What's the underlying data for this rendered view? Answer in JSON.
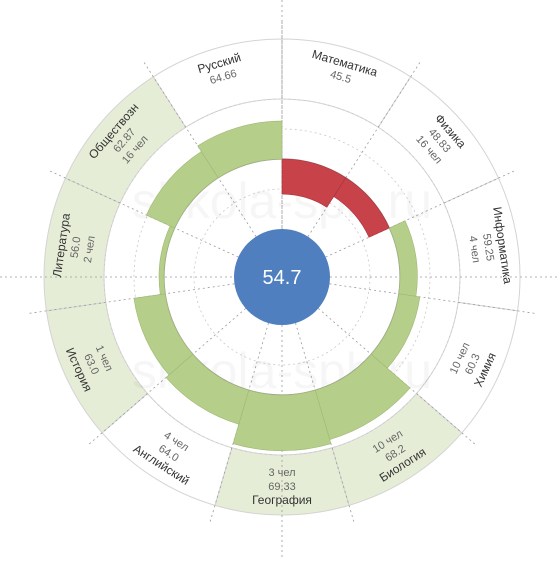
{
  "chart_data": {
    "type": "radial-bar",
    "title": "",
    "center_value": "54.7",
    "watermark": "shkola-spb.ru",
    "baseline": 54.7,
    "value_range": [
      46,
      72
    ],
    "colors": {
      "above": "#b5cf8a",
      "below": "#c8424a",
      "center": "#4f7fbf",
      "highlight_sector": "#e6edd6"
    },
    "sectors": [
      {
        "subject": "Математика",
        "value": 45.5,
        "value_label": "45.5",
        "count": "",
        "highlighted": false
      },
      {
        "subject": "Физика",
        "value": 48.83,
        "value_label": "48.83",
        "count": "16 чел",
        "highlighted": false
      },
      {
        "subject": "Информатика",
        "value": 59.25,
        "value_label": "59.25",
        "count": "4 чел",
        "highlighted": false
      },
      {
        "subject": "Химия",
        "value": 60.3,
        "value_label": "60.3",
        "count": "10 чел",
        "highlighted": false
      },
      {
        "subject": "Биология",
        "value": 68.2,
        "value_label": "68.2",
        "count": "10 чел",
        "highlighted": true
      },
      {
        "subject": "География",
        "value": 69.33,
        "value_label": "69.33",
        "count": "3 чел",
        "highlighted": true
      },
      {
        "subject": "Английский",
        "value": 64.0,
        "value_label": "64.0",
        "count": "4 чел",
        "highlighted": false
      },
      {
        "subject": "История",
        "value": 63.0,
        "value_label": "63.0",
        "count": "1 чел",
        "highlighted": true
      },
      {
        "subject": "Литература",
        "value": 56.0,
        "value_label": "56.0",
        "count": "2 чел",
        "highlighted": true
      },
      {
        "subject": "Обществозн",
        "value": 62.87,
        "value_label": "62.87",
        "count": "16 чел",
        "highlighted": true
      },
      {
        "subject": "Русский",
        "value": 64.66,
        "value_label": "64.66",
        "count": "",
        "highlighted": false
      }
    ]
  }
}
